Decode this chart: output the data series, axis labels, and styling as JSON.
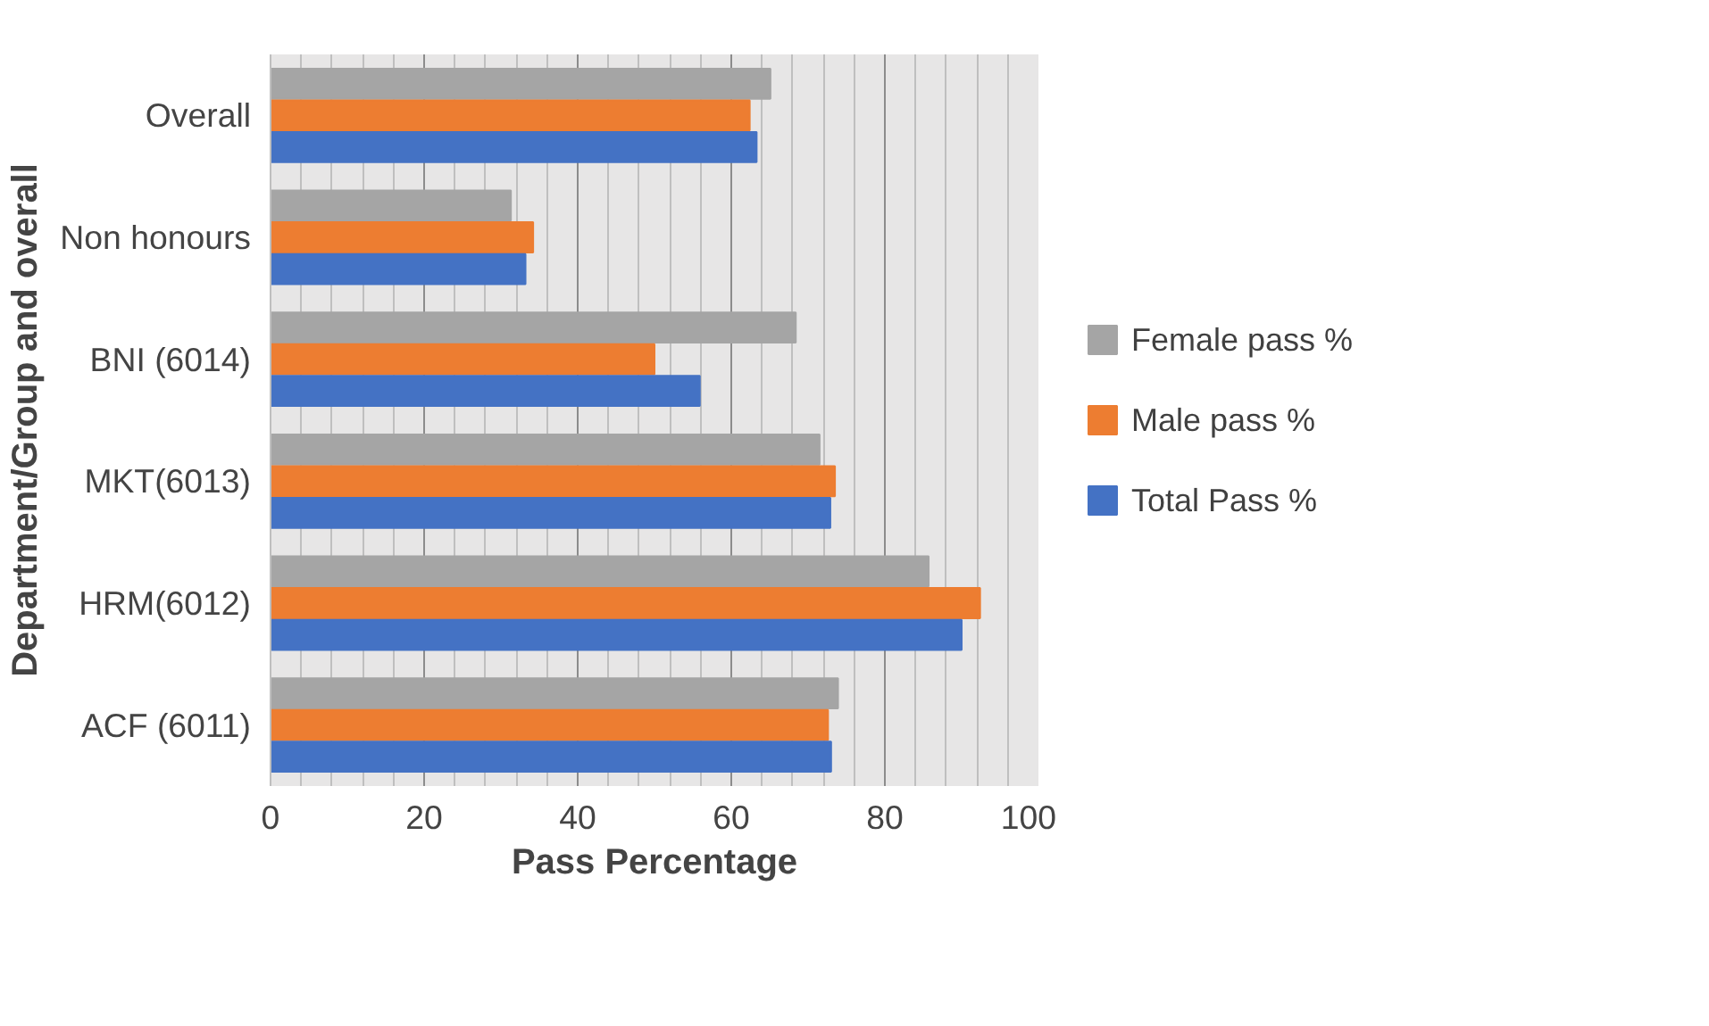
{
  "chart_data": {
    "type": "bar",
    "orientation": "horizontal",
    "xlabel": "Pass Percentage",
    "ylabel": "Department/Group and overall",
    "categories": [
      "Overall",
      "Non honours",
      "BNI (6014)",
      "MKT(6013)",
      "HRM(6012)",
      "ACF (6011)"
    ],
    "series": [
      {
        "name": "Female pass %",
        "color": "#a5a5a5",
        "values": [
          65.1,
          31.3,
          68.4,
          71.5,
          85.7,
          73.9
        ]
      },
      {
        "name": "Male pass %",
        "color": "#ed7d31",
        "values": [
          62.4,
          34.2,
          50.0,
          73.5,
          92.4,
          72.6
        ]
      },
      {
        "name": "Total Pass %",
        "color": "#4472c4",
        "values": [
          63.3,
          33.2,
          55.9,
          72.9,
          90.0,
          73.0
        ]
      }
    ],
    "xlim": [
      0,
      100
    ],
    "xticks": [
      0,
      20,
      40,
      60,
      80,
      100
    ],
    "grid": "x",
    "legend": "right"
  }
}
